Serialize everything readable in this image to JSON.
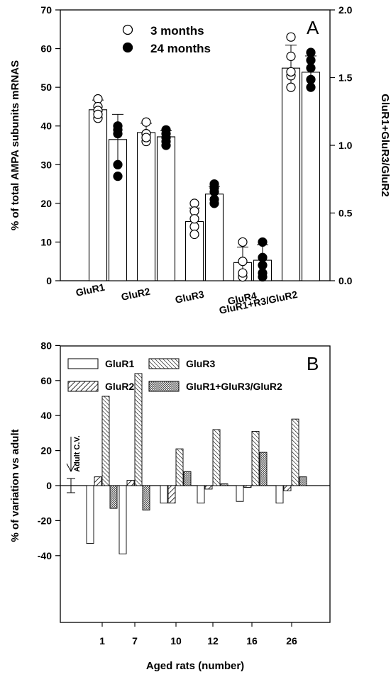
{
  "chart_data": [
    {
      "type": "bar",
      "panel_label": "A",
      "ylabel": "% of total AMPA subunits mRNAS",
      "y2label": "GluR1+GluR3/GluR2",
      "ylim": [
        0,
        70
      ],
      "y2lim": [
        0,
        2.0
      ],
      "yticks": [
        0,
        10,
        20,
        30,
        40,
        50,
        60,
        70
      ],
      "y2ticks": [
        "0.0",
        "0.5",
        "1.0",
        "1.5",
        "2.0"
      ],
      "categories": [
        "GluR1",
        "GluR2",
        "GluR3",
        "GluR4",
        "GluR1+R3/GluR2"
      ],
      "legend": {
        "placement": "top-center",
        "entries": [
          "3 months",
          "24 months"
        ]
      },
      "series": [
        {
          "name": "3 months",
          "marker": "open-circle",
          "values": [
            44.2,
            38.3,
            15.3,
            4.7,
            1.57
          ],
          "error": [
            2.5,
            2.4,
            3.5,
            4.0,
            0.17
          ],
          "points": [
            [
              47,
              45,
              42,
              44,
              43
            ],
            [
              41,
              38,
              36,
              38,
              37
            ],
            [
              20,
              18,
              14,
              12,
              16
            ],
            [
              10,
              5,
              1,
              2
            ],
            [
              63,
              58,
              50,
              53,
              54
            ]
          ]
        },
        {
          "name": "24 months",
          "marker": "filled-circle",
          "values": [
            36.5,
            37.2,
            22.4,
            5.3,
            1.54
          ],
          "error": [
            6.5,
            1.6,
            2.0,
            4.0,
            0.12
          ],
          "points": [
            [
              40,
              38,
              30,
              27,
              39
            ],
            [
              39,
              38,
              37,
              35,
              36
            ],
            [
              25,
              23,
              21,
              20,
              24
            ],
            [
              10,
              6,
              2,
              1,
              4
            ],
            [
              59,
              57,
              52,
              50,
              55
            ]
          ]
        }
      ]
    },
    {
      "type": "bar",
      "panel_label": "B",
      "xlabel": "Aged rats (number)",
      "ylabel": "% of variation vs adult",
      "ylim": [
        -50,
        90
      ],
      "yticks": [
        -40,
        -20,
        0,
        20,
        40,
        60,
        80
      ],
      "categories": [
        "1",
        "7",
        "10",
        "12",
        "16",
        "26"
      ],
      "legend": {
        "placement": "top",
        "entries": [
          "GluR1",
          "GluR3",
          "GluR2",
          "GluR1+GluR3/GluR2"
        ]
      },
      "annotation": "Adult C.V.",
      "adult_cv": 4,
      "series": [
        {
          "name": "GluR1",
          "values": [
            -33,
            -39,
            -10,
            -10,
            -9,
            -10
          ]
        },
        {
          "name": "GluR2",
          "values": [
            5,
            3,
            -10,
            -2,
            -1,
            -3
          ]
        },
        {
          "name": "GluR3",
          "values": [
            51,
            64,
            21,
            32,
            31,
            38
          ]
        },
        {
          "name": "GluR1+GluR3/GluR2",
          "values": [
            -13,
            -14,
            8,
            1,
            19,
            5
          ]
        }
      ]
    }
  ]
}
